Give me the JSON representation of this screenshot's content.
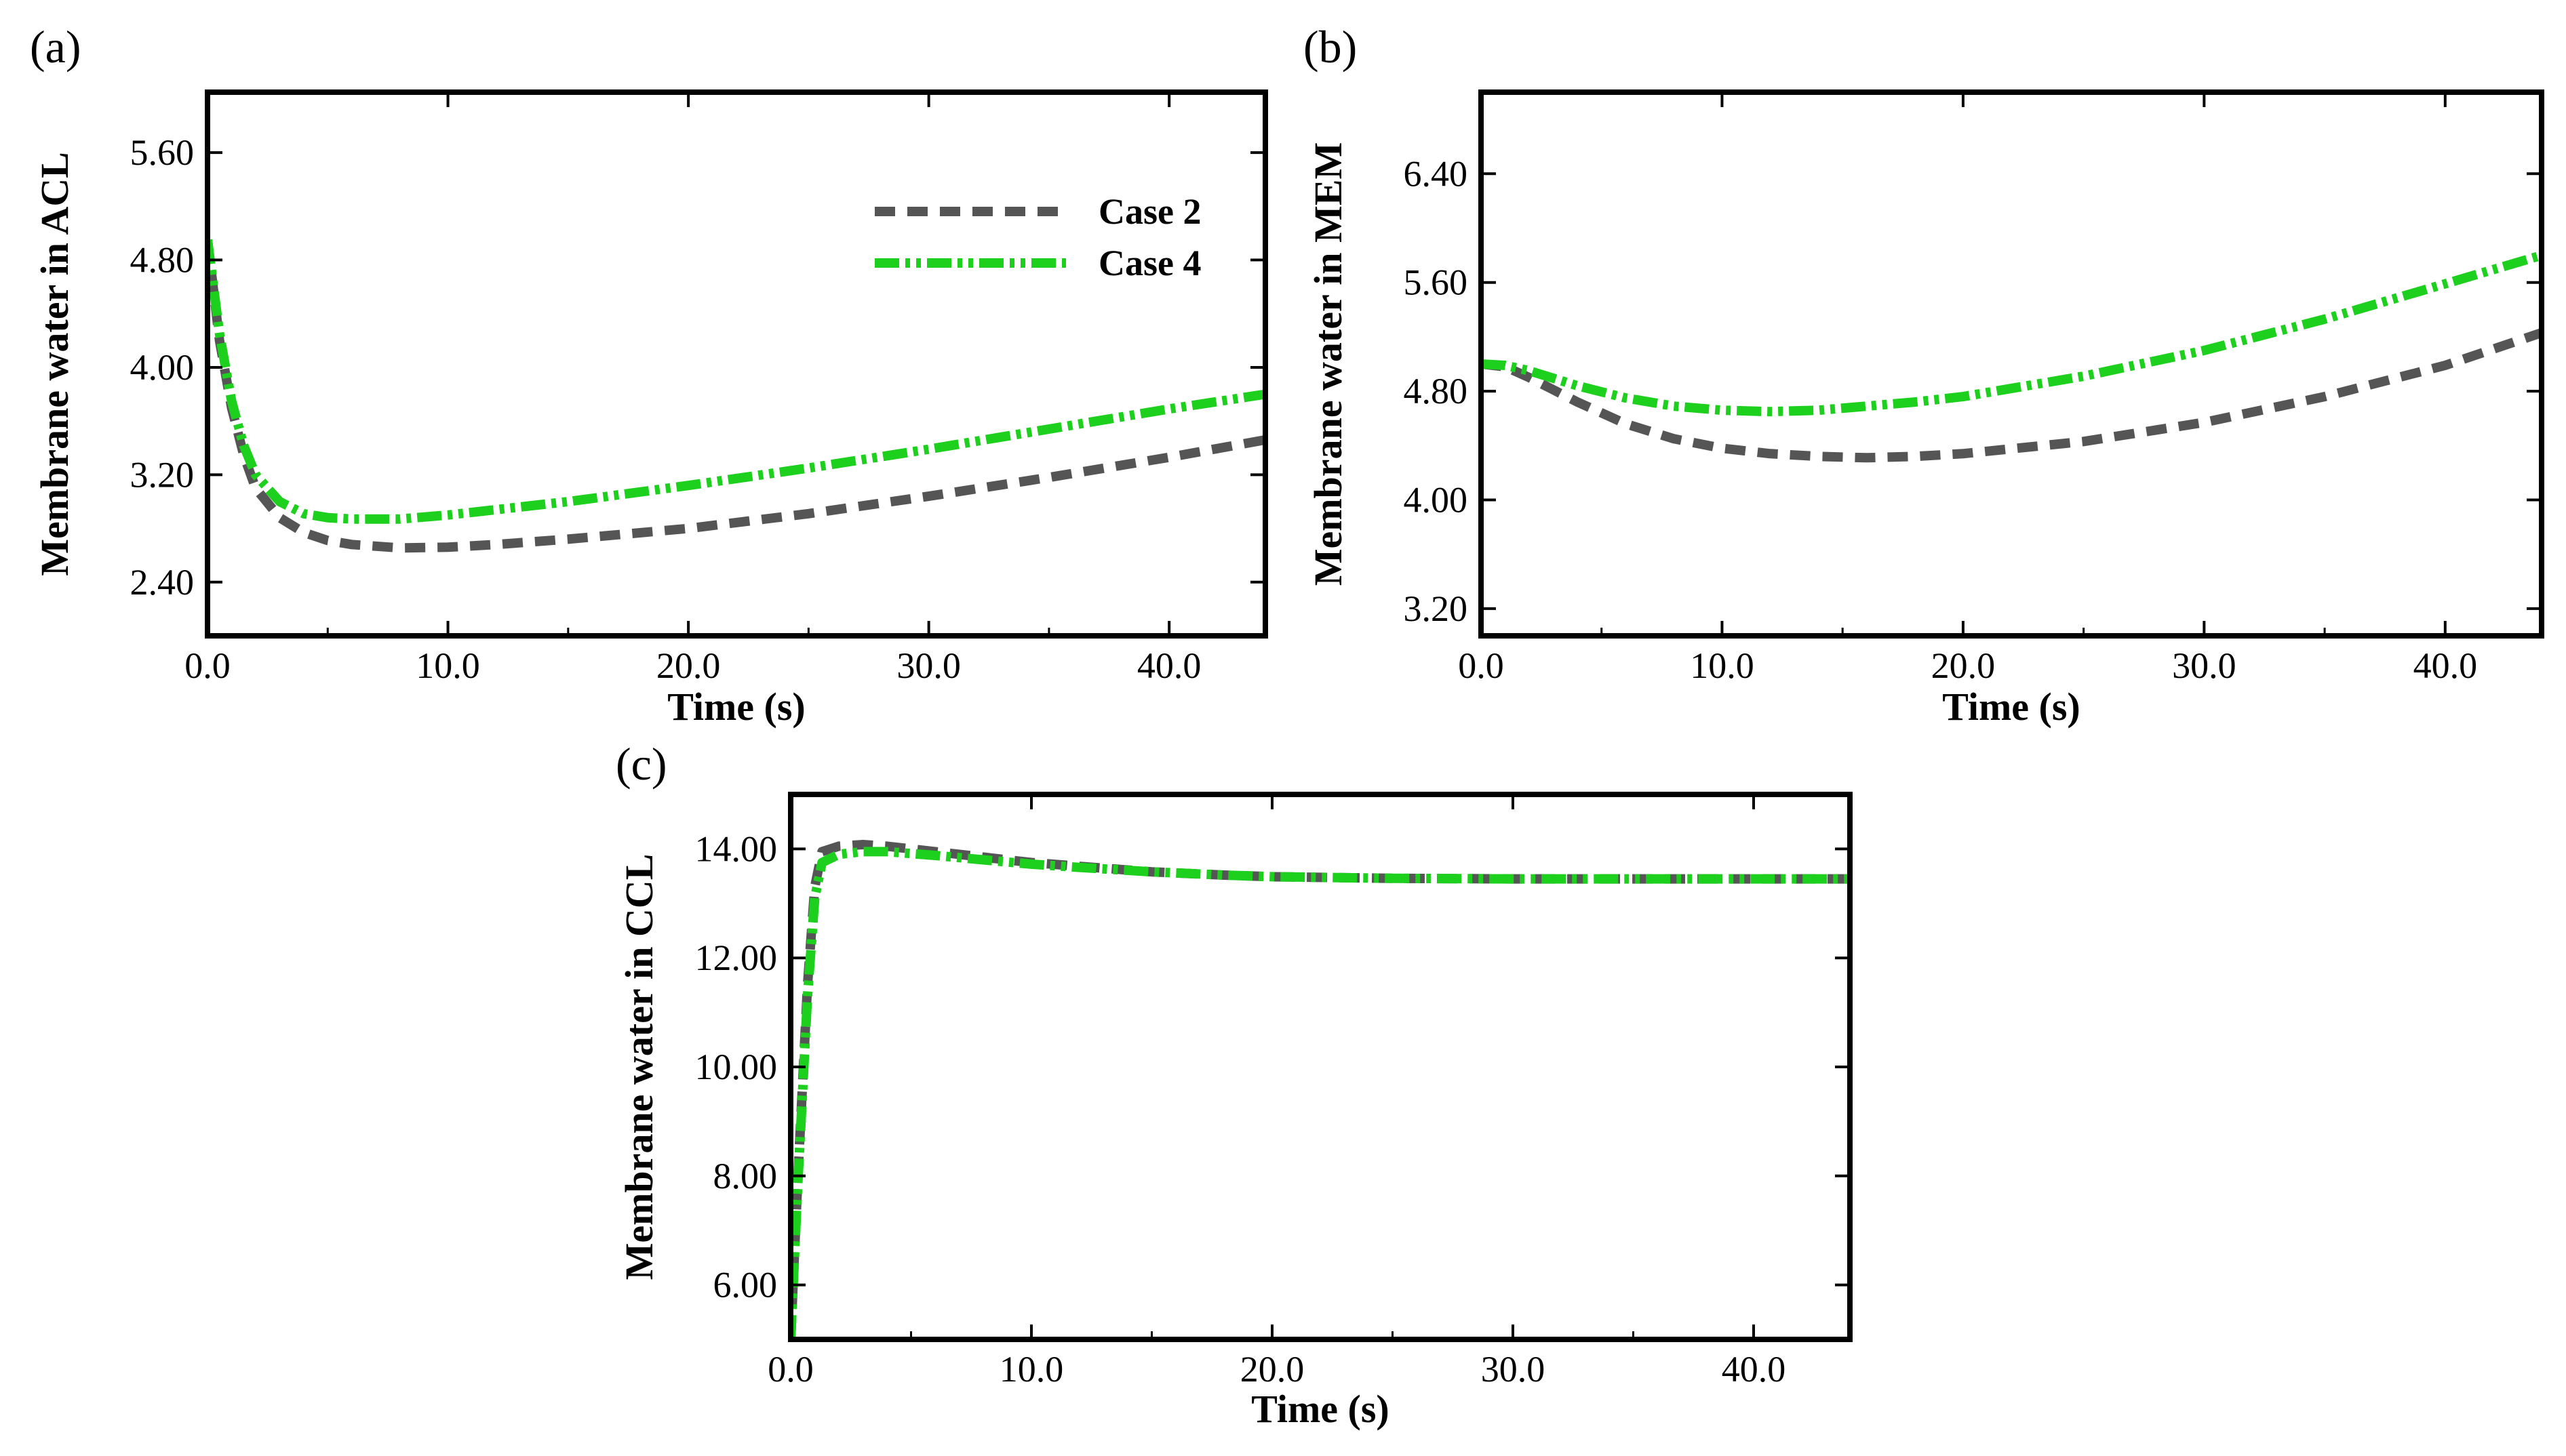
{
  "legend": {
    "entries": [
      {
        "label": "Case 2",
        "color": "#555555",
        "style": "dashed"
      },
      {
        "label": "Case 4",
        "color": "#1ed01e",
        "style": "dash-dot-dot"
      }
    ]
  },
  "chart_data": [
    {
      "panel_label": "(a)",
      "type": "line",
      "xlabel": "Time (s)",
      "ylabel": "Membrane water in ACL",
      "xlim": [
        0,
        44
      ],
      "ylim": [
        2.0,
        6.05
      ],
      "xticks": [
        "0.0",
        "10.0",
        "20.0",
        "30.0",
        "40.0"
      ],
      "yticks": [
        "2.40",
        "3.20",
        "4.00",
        "4.80",
        "5.60"
      ],
      "legend_position": "top-right",
      "grid": false,
      "series": [
        {
          "name": "Case 2",
          "color": "#555555",
          "x": [
            0,
            0.5,
            1,
            1.5,
            2,
            3,
            4,
            5,
            6,
            8,
            10,
            12,
            15,
            20,
            25,
            30,
            35,
            40,
            44
          ],
          "y": [
            4.95,
            4.2,
            3.7,
            3.35,
            3.1,
            2.88,
            2.77,
            2.71,
            2.68,
            2.655,
            2.66,
            2.68,
            2.72,
            2.8,
            2.91,
            3.04,
            3.18,
            3.33,
            3.46
          ]
        },
        {
          "name": "Case 4",
          "color": "#1ed01e",
          "x": [
            0,
            0.5,
            1,
            1.5,
            2,
            3,
            4,
            5,
            6,
            8,
            10,
            12,
            15,
            20,
            25,
            30,
            35,
            40,
            44
          ],
          "y": [
            4.95,
            4.25,
            3.75,
            3.42,
            3.2,
            3.0,
            2.91,
            2.88,
            2.87,
            2.87,
            2.9,
            2.94,
            3.0,
            3.12,
            3.25,
            3.39,
            3.54,
            3.69,
            3.8
          ]
        }
      ]
    },
    {
      "panel_label": "(b)",
      "type": "line",
      "xlabel": "Time (s)",
      "ylabel": "Membrane water in MEM",
      "xlim": [
        0,
        44
      ],
      "ylim": [
        3.0,
        7.0
      ],
      "xticks": [
        "0.0",
        "10.0",
        "20.0",
        "30.0",
        "40.0"
      ],
      "yticks": [
        "3.20",
        "4.00",
        "4.80",
        "5.60",
        "6.40"
      ],
      "grid": false,
      "series": [
        {
          "name": "Case 2",
          "color": "#555555",
          "x": [
            0,
            1,
            2,
            4,
            6,
            8,
            10,
            12,
            14,
            16,
            18,
            20,
            25,
            30,
            35,
            40,
            44
          ],
          "y": [
            5.0,
            4.98,
            4.9,
            4.72,
            4.56,
            4.45,
            4.38,
            4.34,
            4.32,
            4.31,
            4.32,
            4.34,
            4.43,
            4.57,
            4.76,
            4.99,
            5.23
          ]
        },
        {
          "name": "Case 4",
          "color": "#1ed01e",
          "x": [
            0,
            1,
            2,
            4,
            6,
            8,
            10,
            12,
            14,
            16,
            18,
            20,
            25,
            30,
            35,
            40,
            44
          ],
          "y": [
            5.0,
            4.99,
            4.95,
            4.84,
            4.75,
            4.69,
            4.66,
            4.65,
            4.66,
            4.69,
            4.72,
            4.76,
            4.91,
            5.1,
            5.33,
            5.59,
            5.8
          ]
        }
      ]
    },
    {
      "panel_label": "(c)",
      "type": "line",
      "xlabel": "Time (s)",
      "ylabel": "Membrane water in CCL",
      "xlim": [
        0,
        44
      ],
      "ylim": [
        5.0,
        15.0
      ],
      "xticks": [
        "0.0",
        "10.0",
        "20.0",
        "30.0",
        "40.0"
      ],
      "yticks": [
        "6.00",
        "8.00",
        "10.00",
        "12.00",
        "14.00"
      ],
      "grid": false,
      "series": [
        {
          "name": "Case 2",
          "color": "#555555",
          "x": [
            0,
            0.3,
            0.7,
            1.0,
            1.3,
            2,
            3,
            4,
            6,
            8,
            10,
            12,
            15,
            18,
            20,
            25,
            30,
            35,
            40,
            44
          ],
          "y": [
            5.0,
            8.0,
            11.5,
            13.3,
            13.95,
            14.05,
            14.08,
            14.05,
            13.95,
            13.85,
            13.75,
            13.68,
            13.58,
            13.52,
            13.49,
            13.46,
            13.45,
            13.45,
            13.45,
            13.45
          ]
        },
        {
          "name": "Case 4",
          "color": "#1ed01e",
          "x": [
            0,
            0.3,
            0.7,
            1.0,
            1.3,
            2,
            3,
            4,
            6,
            8,
            10,
            12,
            15,
            18,
            20,
            25,
            30,
            35,
            40,
            44
          ],
          "y": [
            5.0,
            7.9,
            11.3,
            13.1,
            13.75,
            13.9,
            13.95,
            13.95,
            13.88,
            13.8,
            13.72,
            13.66,
            13.58,
            13.52,
            13.49,
            13.46,
            13.45,
            13.45,
            13.45,
            13.45
          ]
        }
      ]
    }
  ]
}
